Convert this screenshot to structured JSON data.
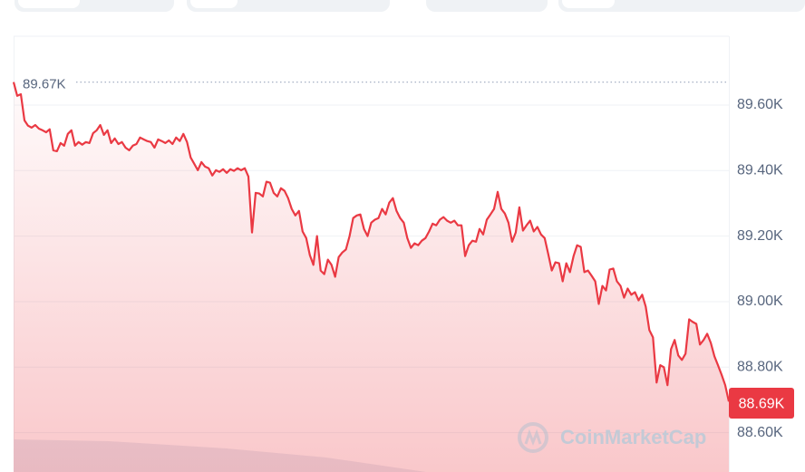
{
  "chart_data": {
    "type": "line",
    "color": "#ea3943",
    "values": [
      89670,
      89628,
      89633,
      89553,
      89537,
      89531,
      89539,
      89528,
      89523,
      89517,
      89526,
      89462,
      89459,
      89484,
      89476,
      89512,
      89523,
      89476,
      89487,
      89479,
      89487,
      89484,
      89514,
      89523,
      89539,
      89509,
      89523,
      89484,
      89498,
      89481,
      89487,
      89470,
      89462,
      89476,
      89481,
      89501,
      89495,
      89490,
      89487,
      89470,
      89495,
      89490,
      89484,
      89492,
      89481,
      89501,
      89490,
      89512,
      89487,
      89440,
      89421,
      89401,
      89426,
      89412,
      89407,
      89385,
      89401,
      89396,
      89404,
      89393,
      89404,
      89399,
      89407,
      89401,
      89407,
      89382,
      89211,
      89332,
      89330,
      89321,
      89366,
      89363,
      89332,
      89321,
      89346,
      89338,
      89316,
      89283,
      89263,
      89277,
      89214,
      89194,
      89142,
      89112,
      89200,
      89095,
      89084,
      89128,
      89112,
      89076,
      89136,
      89150,
      89159,
      89200,
      89255,
      89263,
      89266,
      89222,
      89200,
      89241,
      89250,
      89255,
      89283,
      89266,
      89302,
      89316,
      89277,
      89255,
      89241,
      89194,
      89164,
      89178,
      89172,
      89186,
      89194,
      89214,
      89238,
      89233,
      89250,
      89258,
      89247,
      89241,
      89247,
      89233,
      89233,
      89139,
      89172,
      89186,
      89183,
      89222,
      89205,
      89250,
      89266,
      89283,
      89335,
      89283,
      89269,
      89241,
      89183,
      89211,
      89288,
      89217,
      89233,
      89247,
      89214,
      89228,
      89205,
      89194,
      89145,
      89095,
      89120,
      89117,
      89062,
      89117,
      89090,
      89139,
      89172,
      89167,
      89090,
      89095,
      89079,
      89062,
      88993,
      89048,
      89034,
      89098,
      89101,
      89062,
      89048,
      89012,
      89040,
      89021,
      89029,
      89004,
      89021,
      88985,
      88913,
      88891,
      88753,
      88806,
      88800,
      88745,
      88855,
      88883,
      88836,
      88822,
      88841,
      88946,
      88938,
      88932,
      88869,
      88883,
      88902,
      88874,
      88833,
      88806,
      88777,
      88745,
      88695
    ],
    "ylim": [
      88480,
      89810
    ],
    "yticks": [
      {
        "value": 88600,
        "label": "88.60K"
      },
      {
        "value": 88800,
        "label": "88.80K"
      },
      {
        "value": 89000,
        "label": "89.00K"
      },
      {
        "value": 89200,
        "label": "89.20K"
      },
      {
        "value": 89400,
        "label": "89.40K"
      },
      {
        "value": 89600,
        "label": "89.60K"
      }
    ],
    "grid": true,
    "annotations": {
      "high": {
        "value": 89670,
        "label": "89.67K"
      },
      "current": {
        "value": 88690,
        "label": "88.69K"
      }
    },
    "watermark": "CoinMarketCap"
  }
}
